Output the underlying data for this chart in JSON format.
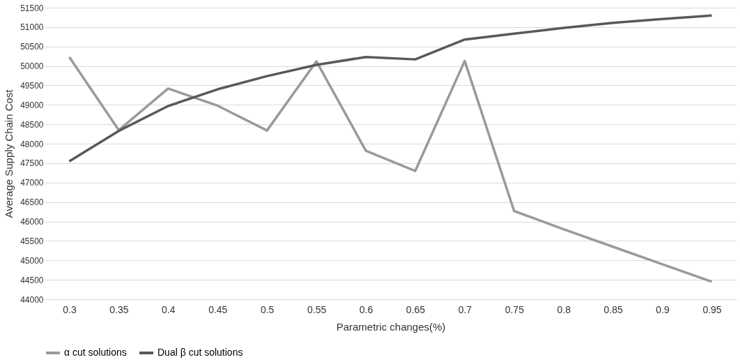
{
  "chart_data": {
    "type": "line",
    "xlabel": "Parametric changes(%)",
    "ylabel": "Average Supply Chain Cost",
    "categories": [
      "0.3",
      "0.35",
      "0.4",
      "0.45",
      "0.5",
      "0.55",
      "0.6",
      "0.65",
      "0.7",
      "0.75",
      "0.8",
      "0.85",
      "0.9",
      "0.95"
    ],
    "series": [
      {
        "name": "α cut solutions",
        "color": "#9a9a9a",
        "values": [
          50230,
          48350,
          49420,
          48980,
          48340,
          50120,
          47820,
          47300,
          50130,
          46270,
          45800,
          45350,
          44900,
          44450
        ]
      },
      {
        "name": "Dual β cut solutions",
        "color": "#595959",
        "values": [
          47550,
          48330,
          48970,
          49400,
          49740,
          50030,
          50230,
          50170,
          50680,
          50830,
          50980,
          51110,
          51210,
          51300
        ]
      }
    ],
    "ylim": [
      44000,
      51500
    ],
    "yticks": [
      44000,
      44500,
      45000,
      45500,
      46000,
      46500,
      47000,
      47500,
      48000,
      48500,
      49000,
      49500,
      50000,
      50500,
      51000,
      51500
    ],
    "grid": "y",
    "legend": "bottom",
    "marker": "none",
    "line_style": "solid"
  }
}
